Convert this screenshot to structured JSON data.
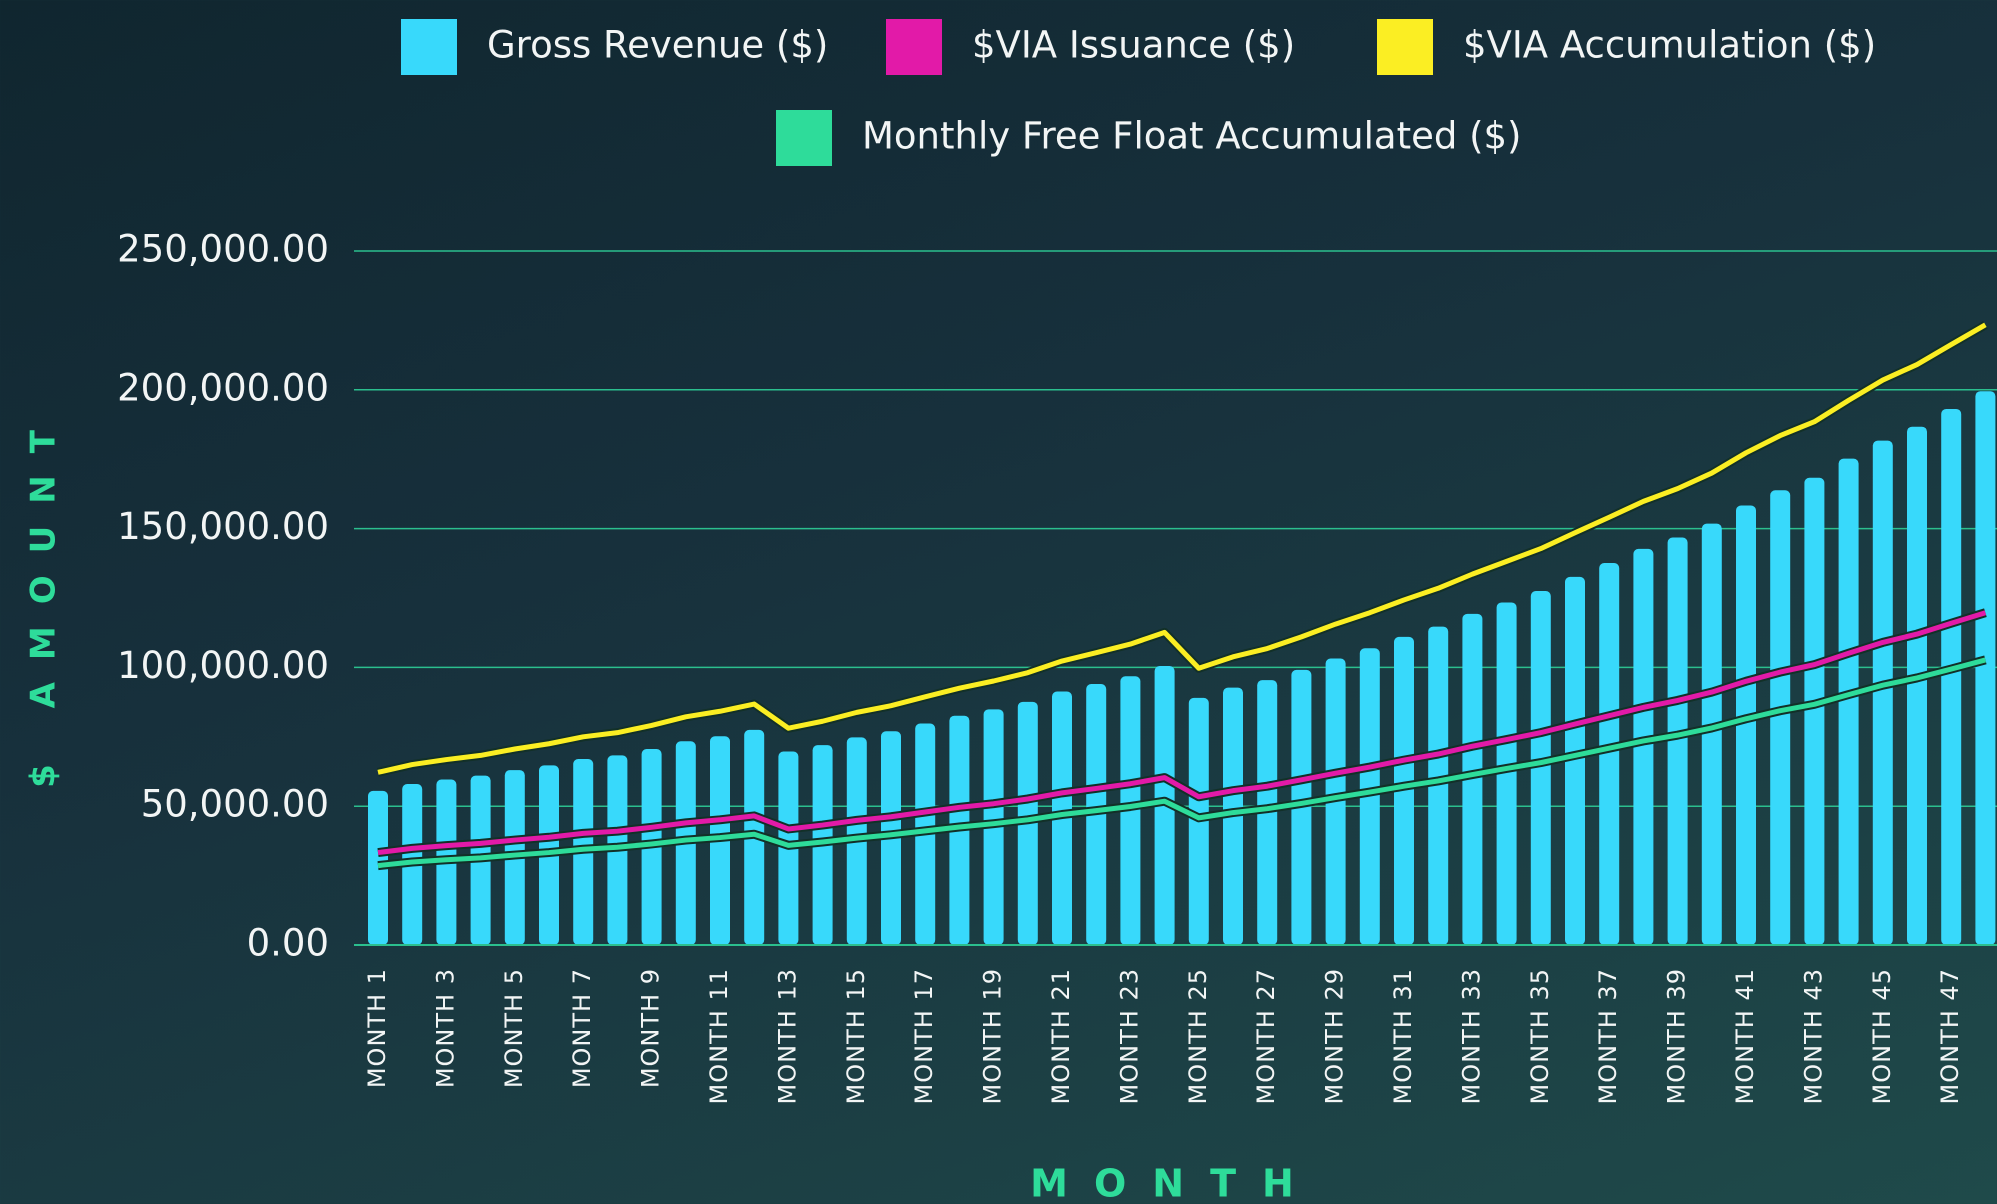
{
  "chart_data": {
    "type": "bar",
    "xlabel": "MONTH",
    "ylabel": "$ AMOUNT",
    "categories": [
      "MONTH 1",
      null,
      "MONTH 3",
      null,
      "MONTH 5",
      null,
      "MONTH 7",
      null,
      "MONTH 9",
      null,
      "MONTH 11",
      null,
      "MONTH 13",
      null,
      "MONTH 15",
      null,
      "MONTH 17",
      null,
      "MONTH 19",
      null,
      "MONTH 21",
      null,
      "MONTH 23",
      null,
      "MONTH 25",
      null,
      "MONTH 27",
      null,
      "MONTH 29",
      null,
      "MONTH 31",
      null,
      "MONTH 33",
      null,
      "MONTH 35",
      null,
      "MONTH 37",
      null,
      "MONTH 39",
      null,
      "MONTH 41",
      null,
      "MONTH 43",
      null,
      "MONTH 45",
      null,
      "MONTH 47",
      null
    ],
    "series": [
      {
        "name": "Gross Revenue ($)",
        "type": "bar",
        "color": "#38d9fb",
        "values": [
          55500,
          58000,
          59600,
          61000,
          63000,
          64700,
          67000,
          68300,
          70600,
          73400,
          75200,
          77500,
          69700,
          72000,
          74800,
          77000,
          79800,
          82600,
          84900,
          87600,
          91300,
          94000,
          96800,
          100500,
          89000,
          92700,
          95400,
          99100,
          103200,
          106900,
          111000,
          114700,
          119300,
          123400,
          127500,
          132600,
          137600,
          142700,
          146800,
          151800,
          158300,
          163800,
          168300,
          175200,
          181700,
          186700,
          193100,
          199500
        ]
      },
      {
        "name": "$VIA Issuance ($)",
        "type": "line",
        "color": "#e21aa8",
        "values": [
          33300,
          34800,
          35800,
          36600,
          37800,
          38800,
          40200,
          41000,
          42400,
          44000,
          45100,
          46500,
          41800,
          43200,
          44900,
          46200,
          47900,
          49600,
          50900,
          52600,
          54800,
          56400,
          58100,
          60300,
          53400,
          55600,
          57200,
          59500,
          61900,
          64100,
          66600,
          68800,
          71600,
          74000,
          76500,
          79600,
          82600,
          85600,
          88100,
          91100,
          95000,
          98300,
          101000,
          105100,
          109000,
          112000,
          115900,
          119700
        ]
      },
      {
        "name": "$VIA Accumulation ($)",
        "type": "line",
        "color": "#fbee23",
        "values": [
          62200,
          65000,
          66800,
          68300,
          70600,
          72500,
          75000,
          76500,
          79100,
          82200,
          84200,
          86800,
          78100,
          80600,
          83800,
          86200,
          89400,
          92500,
          95100,
          98100,
          102300,
          105300,
          108400,
          112600,
          99700,
          103800,
          106800,
          111000,
          115600,
          119700,
          124300,
          128500,
          133600,
          138200,
          142800,
          148500,
          154100,
          159800,
          164400,
          170000,
          177300,
          183500,
          188500,
          196200,
          203500,
          209100,
          216300,
          223400
        ]
      },
      {
        "name": "Monthly Free Float Accumulated ($)",
        "type": "line",
        "color": "#2edc9a",
        "values": [
          28600,
          29900,
          30700,
          31400,
          32400,
          33300,
          34500,
          35200,
          36400,
          37800,
          38700,
          39900,
          35900,
          37100,
          38500,
          39700,
          41100,
          42500,
          43700,
          45100,
          47000,
          48400,
          49900,
          51800,
          45800,
          47700,
          49100,
          51000,
          53100,
          55100,
          57200,
          59100,
          61400,
          63600,
          65700,
          68300,
          70900,
          73500,
          75600,
          78200,
          81500,
          84400,
          86700,
          90200,
          93600,
          96200,
          99400,
          102700
        ]
      }
    ],
    "ylim": [
      0,
      250000
    ],
    "yticks": [
      {
        "value": 0,
        "label": "0.00"
      },
      {
        "value": 50000,
        "label": "50,000.00"
      },
      {
        "value": 100000,
        "label": "100,000.00"
      },
      {
        "value": 150000,
        "label": "150,000.00"
      },
      {
        "value": 200000,
        "label": "200,000.00"
      },
      {
        "value": 250000,
        "label": "250,000.00"
      }
    ],
    "grid": true,
    "grid_color": "#2bbf8e",
    "legend": "top"
  }
}
